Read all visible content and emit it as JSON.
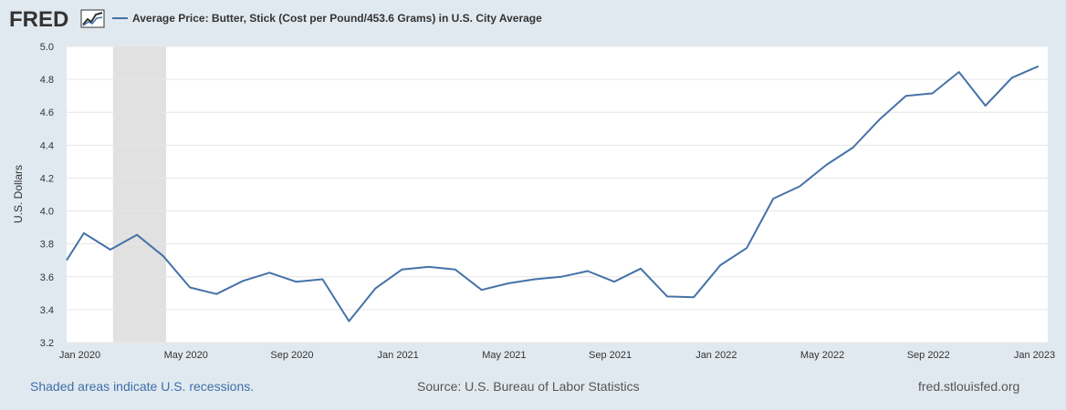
{
  "header": {
    "logo_text": "FRED",
    "legend_label": "Average Price: Butter, Stick (Cost per Pound/453.6 Grams) in U.S. City Average"
  },
  "footer": {
    "recession_note": "Shaded areas indicate U.S. recessions.",
    "source": "Source: U.S. Bureau of Labor Statistics",
    "site": "fred.stlouisfed.org"
  },
  "colors": {
    "series": "#4572a7",
    "recession": "#e1e1e1",
    "background": "#e1e9f0",
    "plot_background": "#ffffff",
    "grid": "#e6e6e6"
  },
  "chart_data": {
    "type": "line",
    "title": "Average Price: Butter, Stick (Cost per Pound/453.6 Grams) in U.S. City Average",
    "xlabel": "",
    "ylabel": "U.S. Dollars",
    "ylim": [
      3.2,
      5.0
    ],
    "yticks": [
      "3.2",
      "3.4",
      "3.6",
      "3.8",
      "4.0",
      "4.2",
      "4.4",
      "4.6",
      "4.8",
      "5.0"
    ],
    "xlim": [
      0,
      37
    ],
    "xticks": [
      {
        "x": 0.5,
        "label": "Jan 2020"
      },
      {
        "x": 4.5,
        "label": "May 2020"
      },
      {
        "x": 8.5,
        "label": "Sep 2020"
      },
      {
        "x": 12.5,
        "label": "Jan 2021"
      },
      {
        "x": 16.5,
        "label": "May 2021"
      },
      {
        "x": 20.5,
        "label": "Sep 2021"
      },
      {
        "x": 24.5,
        "label": "Jan 2022"
      },
      {
        "x": 28.5,
        "label": "May 2022"
      },
      {
        "x": 32.5,
        "label": "Sep 2022"
      },
      {
        "x": 36.5,
        "label": "Jan 2023"
      }
    ],
    "recessions": [
      {
        "start": 1.75,
        "end": 3.75
      }
    ],
    "series": [
      {
        "name": "Average Price: Butter, Stick (Cost per Pound/453.6 Grams) in U.S. City Average",
        "x": [
          0,
          0.65,
          1.65,
          2.65,
          3.65,
          4.65,
          5.65,
          6.65,
          7.65,
          8.65,
          9.65,
          10.65,
          11.65,
          12.65,
          13.65,
          14.65,
          15.65,
          16.65,
          17.65,
          18.65,
          19.65,
          20.65,
          21.65,
          22.65,
          23.65,
          24.65,
          25.65,
          26.65,
          27.65,
          28.65,
          29.65,
          30.65,
          31.65,
          32.65,
          33.65,
          34.65,
          35.65,
          36.65
        ],
        "values": [
          3.7,
          3.865,
          3.765,
          3.855,
          3.725,
          3.535,
          3.495,
          3.575,
          3.625,
          3.57,
          3.585,
          3.33,
          3.53,
          3.645,
          3.66,
          3.645,
          3.52,
          3.56,
          3.585,
          3.6,
          3.635,
          3.57,
          3.65,
          3.48,
          3.475,
          3.67,
          3.775,
          4.075,
          4.15,
          4.28,
          4.385,
          4.555,
          4.7,
          4.715,
          4.845,
          4.64,
          4.81,
          4.88
        ]
      }
    ]
  }
}
